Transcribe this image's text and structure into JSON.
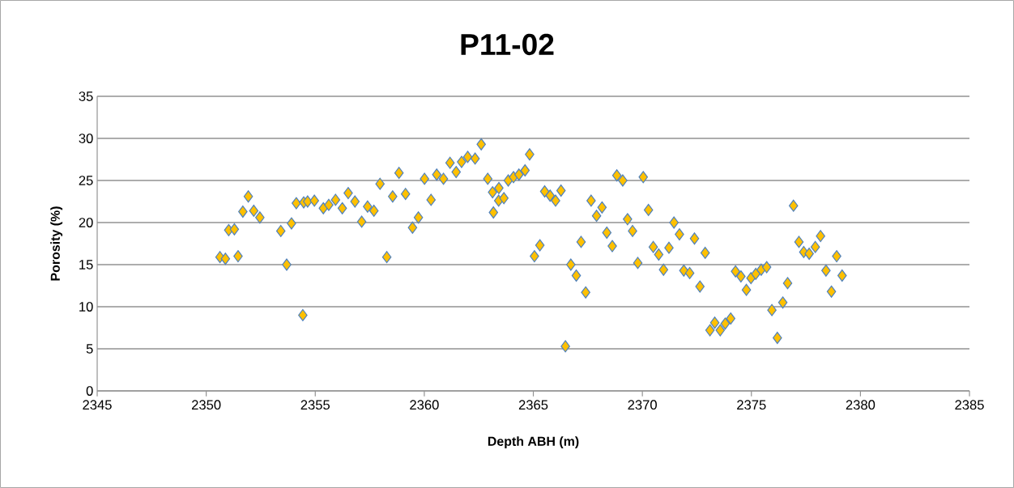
{
  "chart_data": {
    "type": "scatter",
    "title": "P11-02",
    "xlabel": "Depth ABH (m)",
    "ylabel": "Porosity (%)",
    "xlim": [
      2345,
      2385
    ],
    "xticks": [
      2345,
      2350,
      2355,
      2360,
      2365,
      2370,
      2375,
      2380,
      2385
    ],
    "ylim": [
      0,
      35
    ],
    "yticks": [
      0,
      5,
      10,
      15,
      20,
      25,
      30,
      35
    ],
    "grid": "y",
    "marker": "diamond",
    "series": [
      {
        "color": "#ffc000",
        "x": [
          2350.63,
          2350.88,
          2351.03,
          2351.29,
          2351.46,
          2351.68,
          2351.93,
          2352.18,
          2352.46,
          2353.42,
          2353.69,
          2353.91,
          2354.13,
          2354.43,
          2354.47,
          2354.65,
          2354.96,
          2355.37,
          2355.62,
          2355.93,
          2356.24,
          2356.51,
          2356.82,
          2357.13,
          2357.4,
          2357.69,
          2357.97,
          2358.28,
          2358.55,
          2358.84,
          2359.14,
          2359.46,
          2359.73,
          2360.01,
          2360.31,
          2360.57,
          2360.88,
          2361.18,
          2361.46,
          2361.71,
          2361.99,
          2362.33,
          2362.61,
          2362.91,
          2363.13,
          2363.17,
          2363.42,
          2363.41,
          2363.65,
          2363.85,
          2364.09,
          2364.34,
          2364.62,
          2364.83,
          2365.05,
          2365.3,
          2365.52,
          2365.77,
          2366.02,
          2366.27,
          2366.47,
          2366.72,
          2366.97,
          2367.19,
          2367.4,
          2367.65,
          2367.9,
          2368.15,
          2368.37,
          2368.62,
          2368.83,
          2369.1,
          2369.32,
          2369.55,
          2369.79,
          2370.04,
          2370.28,
          2370.5,
          2370.75,
          2370.97,
          2371.22,
          2371.45,
          2371.7,
          2371.9,
          2372.17,
          2372.39,
          2372.64,
          2372.88,
          2373.1,
          2373.32,
          2373.57,
          2373.8,
          2374.05,
          2374.27,
          2374.52,
          2374.77,
          2374.98,
          2375.2,
          2375.45,
          2375.7,
          2375.94,
          2376.19,
          2376.44,
          2376.66,
          2376.93,
          2377.18,
          2377.4,
          2377.65,
          2377.93,
          2378.17,
          2378.42,
          2378.67,
          2378.91,
          2379.16
        ],
        "values": [
          15.9,
          15.7,
          19.1,
          19.2,
          16.0,
          21.3,
          23.1,
          21.4,
          20.6,
          19.0,
          15.0,
          19.9,
          22.3,
          9.0,
          22.4,
          22.5,
          22.6,
          21.7,
          22.1,
          22.7,
          21.7,
          23.5,
          22.5,
          20.1,
          21.9,
          21.4,
          24.6,
          15.9,
          23.1,
          25.9,
          23.4,
          19.4,
          20.6,
          25.2,
          22.7,
          25.7,
          25.2,
          27.1,
          26.0,
          27.2,
          27.8,
          27.6,
          29.3,
          25.2,
          23.6,
          21.2,
          24.1,
          22.6,
          22.9,
          25.0,
          25.4,
          25.7,
          26.2,
          28.1,
          16.0,
          17.3,
          23.7,
          23.2,
          22.6,
          23.8,
          5.3,
          15.0,
          13.7,
          17.7,
          11.7,
          22.6,
          20.8,
          21.8,
          18.8,
          17.2,
          25.6,
          25.0,
          20.4,
          19.0,
          15.2,
          25.4,
          21.5,
          17.1,
          16.2,
          14.4,
          17.0,
          20.0,
          18.6,
          14.3,
          14.0,
          18.1,
          12.4,
          16.4,
          7.2,
          8.1,
          7.2,
          8.0,
          8.6,
          14.2,
          13.6,
          12.0,
          13.4,
          13.9,
          14.4,
          14.7,
          9.6,
          6.3,
          10.5,
          12.8,
          22.0,
          17.7,
          16.5,
          16.3,
          17.1,
          18.4,
          14.3,
          11.8,
          16.0,
          13.7
        ]
      }
    ]
  }
}
